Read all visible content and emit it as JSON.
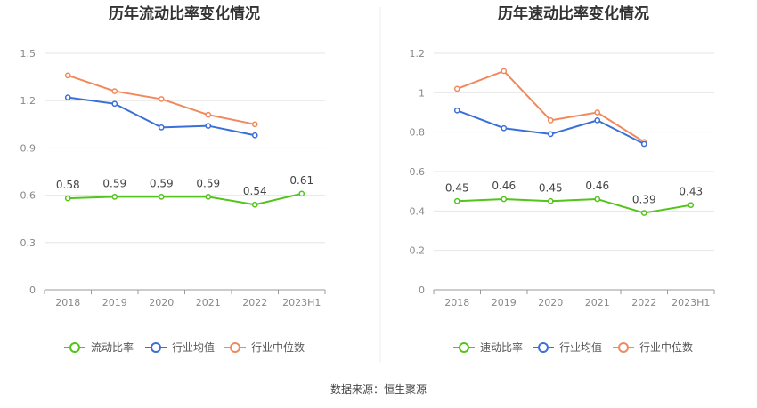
{
  "source_text": "数据来源：恒生聚源",
  "chart_data": [
    {
      "type": "line",
      "title": "历年流动比率变化情况",
      "categories": [
        "2018",
        "2019",
        "2020",
        "2021",
        "2022",
        "2023H1"
      ],
      "ylim": [
        0,
        1.5
      ],
      "yticks": [
        "0",
        "0.3",
        "0.6",
        "0.9",
        "1.2",
        "1.5"
      ],
      "grid": true,
      "legend_position": "bottom",
      "series": [
        {
          "name": "流动比率",
          "color": "#52c41a",
          "values": [
            0.58,
            0.59,
            0.59,
            0.59,
            0.54,
            0.61
          ],
          "labels": [
            "0.58",
            "0.59",
            "0.59",
            "0.59",
            "0.54",
            "0.61"
          ]
        },
        {
          "name": "行业均值",
          "color": "#3b6fd8",
          "values": [
            1.22,
            1.18,
            1.03,
            1.04,
            0.98,
            null
          ]
        },
        {
          "name": "行业中位数",
          "color": "#f08a5d",
          "values": [
            1.36,
            1.26,
            1.21,
            1.11,
            1.05,
            null
          ]
        }
      ]
    },
    {
      "type": "line",
      "title": "历年速动比率变化情况",
      "categories": [
        "2018",
        "2019",
        "2020",
        "2021",
        "2022",
        "2023H1"
      ],
      "ylim": [
        0,
        1.2
      ],
      "yticks": [
        "0",
        "0.2",
        "0.4",
        "0.6",
        "0.8",
        "1",
        "1.2"
      ],
      "grid": true,
      "legend_position": "bottom",
      "series": [
        {
          "name": "速动比率",
          "color": "#52c41a",
          "values": [
            0.45,
            0.46,
            0.45,
            0.46,
            0.39,
            0.43
          ],
          "labels": [
            "0.45",
            "0.46",
            "0.45",
            "0.46",
            "0.39",
            "0.43"
          ]
        },
        {
          "name": "行业均值",
          "color": "#3b6fd8",
          "values": [
            0.91,
            0.82,
            0.79,
            0.86,
            0.74,
            null
          ]
        },
        {
          "name": "行业中位数",
          "color": "#f08a5d",
          "values": [
            1.02,
            1.11,
            0.86,
            0.9,
            0.75,
            null
          ]
        }
      ]
    }
  ]
}
